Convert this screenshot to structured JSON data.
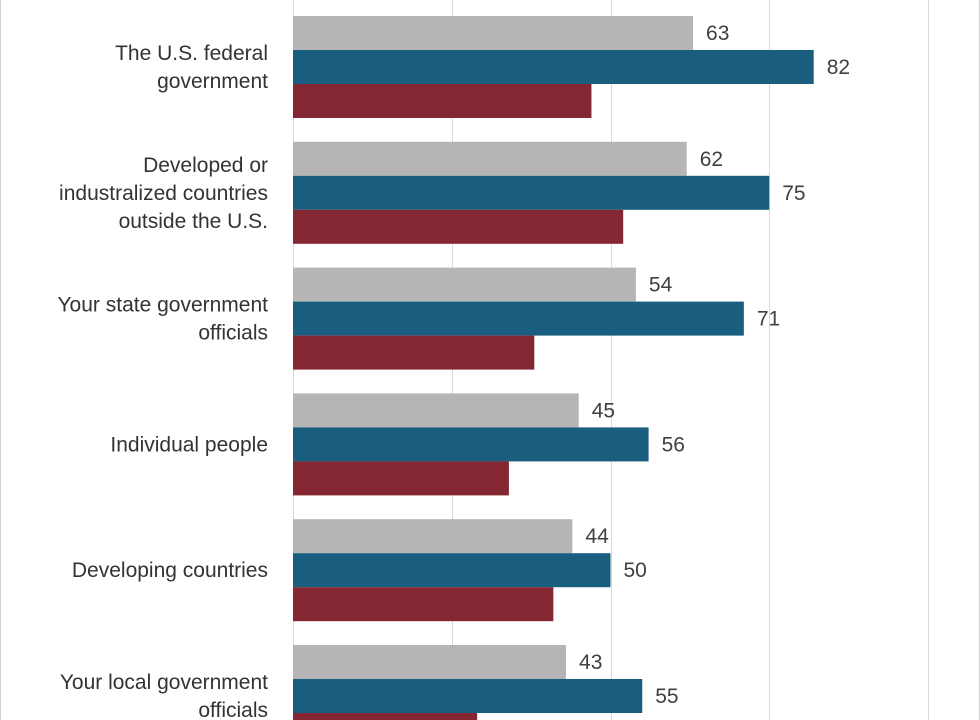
{
  "chart_data": {
    "type": "bar",
    "orientation": "horizontal",
    "title": "",
    "xlabel": "",
    "ylabel": "",
    "xlim": [
      0,
      100
    ],
    "grid": true,
    "categories": [
      [
        "The U.S. federal",
        "government"
      ],
      [
        "Developed or",
        "industralized countries",
        "outside the U.S."
      ],
      [
        "Your state government",
        "officials"
      ],
      [
        "Individual people"
      ],
      [
        "Developing countries"
      ],
      [
        "Your local government",
        "officials"
      ]
    ],
    "series": [
      {
        "color": "#b5b5b5",
        "values": [
          63,
          62,
          54,
          45,
          44,
          43
        ],
        "labeled": true
      },
      {
        "color": "#195e7e",
        "values": [
          82,
          75,
          71,
          56,
          50,
          55
        ],
        "labeled": true
      },
      {
        "color": "#852633",
        "values": [
          47,
          52,
          38,
          34,
          41,
          29
        ],
        "labeled": false
      }
    ]
  }
}
